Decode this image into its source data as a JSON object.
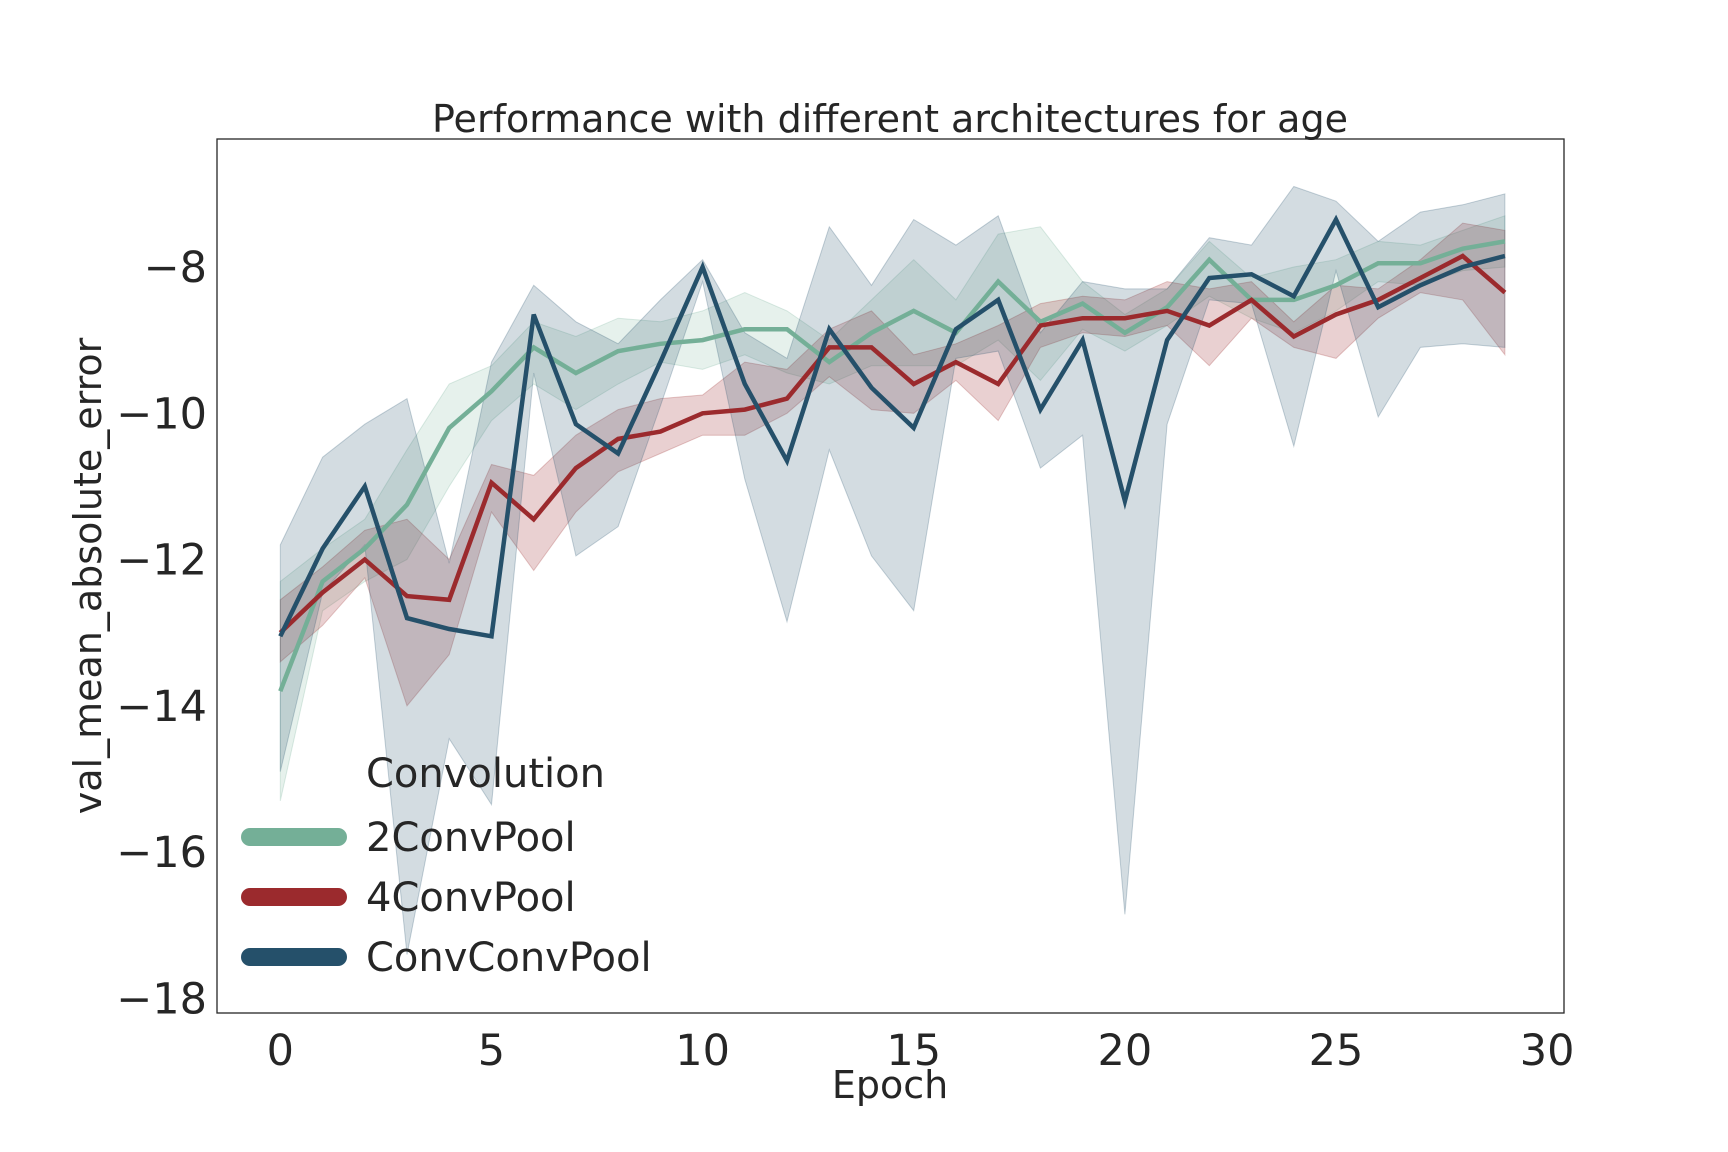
{
  "chart_data": {
    "type": "line",
    "title": "Performance with different architectures for age",
    "xlabel": "Epoch",
    "ylabel": "val_mean_absolute_error",
    "xlim": [
      -1.5,
      30.4
    ],
    "ylim": [
      -18.2,
      -6.25
    ],
    "xticks": [
      0,
      5,
      10,
      15,
      20,
      25,
      30
    ],
    "xtick_labels": [
      "0",
      "5",
      "10",
      "15",
      "20",
      "25",
      "30"
    ],
    "yticks": [
      -18,
      -16,
      -14,
      -12,
      -10,
      -8
    ],
    "ytick_labels": [
      "−18",
      "−16",
      "−14",
      "−12",
      "−10",
      "−8"
    ],
    "grid": false,
    "legend": {
      "title": "Convolution",
      "position": "lower-left"
    },
    "x": [
      0,
      1,
      2,
      3,
      4,
      5,
      6,
      7,
      8,
      9,
      10,
      11,
      12,
      13,
      14,
      15,
      16,
      17,
      18,
      19,
      20,
      21,
      22,
      23,
      24,
      25,
      26,
      27,
      28,
      29
    ],
    "series": [
      {
        "name": "2ConvPool",
        "color": "#74af97",
        "band_opacity": 0.18,
        "values": [
          -13.8,
          -12.3,
          -11.85,
          -11.25,
          -10.2,
          -9.7,
          -9.1,
          -9.45,
          -9.15,
          -9.05,
          -9.0,
          -8.85,
          -8.85,
          -9.3,
          -8.9,
          -8.6,
          -8.9,
          -8.2,
          -8.75,
          -8.5,
          -8.9,
          -8.55,
          -7.9,
          -8.45,
          -8.45,
          -8.25,
          -7.95,
          -7.95,
          -7.75,
          -7.65
        ],
        "lower": [
          -15.3,
          -12.7,
          -12.3,
          -12.0,
          -11.0,
          -10.1,
          -9.6,
          -9.95,
          -9.6,
          -9.3,
          -9.4,
          -9.2,
          -9.45,
          -9.6,
          -9.35,
          -9.35,
          -9.35,
          -9.0,
          -9.55,
          -8.85,
          -9.15,
          -8.8,
          -8.4,
          -8.7,
          -8.9,
          -8.6,
          -8.2,
          -8.25,
          -8.05,
          -8.0
        ],
        "upper": [
          -12.3,
          -11.85,
          -11.45,
          -10.5,
          -9.6,
          -9.35,
          -8.75,
          -8.95,
          -8.7,
          -8.75,
          -8.6,
          -8.35,
          -8.6,
          -9.0,
          -8.45,
          -7.9,
          -8.45,
          -7.55,
          -7.45,
          -8.2,
          -8.65,
          -8.3,
          -7.65,
          -8.15,
          -8.0,
          -7.9,
          -7.65,
          -7.7,
          -7.5,
          -7.3
        ]
      },
      {
        "name": "4ConvPool",
        "color": "#9b2a2d",
        "band_opacity": 0.22,
        "values": [
          -13.0,
          -12.45,
          -12.0,
          -12.5,
          -12.55,
          -10.95,
          -11.45,
          -10.75,
          -10.35,
          -10.25,
          -10.0,
          -9.95,
          -9.8,
          -9.1,
          -9.1,
          -9.6,
          -9.3,
          -9.6,
          -8.8,
          -8.7,
          -8.7,
          -8.6,
          -8.8,
          -8.45,
          -8.95,
          -8.65,
          -8.45,
          -8.15,
          -7.85,
          -8.35
        ],
        "lower": [
          -13.4,
          -12.9,
          -12.25,
          -14.0,
          -13.3,
          -11.35,
          -12.15,
          -11.35,
          -10.8,
          -10.55,
          -10.3,
          -10.3,
          -10.0,
          -9.5,
          -9.95,
          -10.0,
          -9.55,
          -10.1,
          -9.1,
          -8.9,
          -8.95,
          -8.8,
          -9.35,
          -8.7,
          -9.1,
          -9.25,
          -8.7,
          -8.35,
          -8.45,
          -9.2
        ],
        "upper": [
          -12.55,
          -12.1,
          -11.6,
          -11.45,
          -12.0,
          -10.7,
          -10.85,
          -10.3,
          -9.95,
          -9.8,
          -9.75,
          -9.3,
          -9.4,
          -8.85,
          -8.6,
          -9.2,
          -9.05,
          -8.8,
          -8.5,
          -8.4,
          -8.45,
          -8.2,
          -8.3,
          -8.2,
          -8.75,
          -8.25,
          -8.3,
          -7.9,
          -7.4,
          -7.5
        ]
      },
      {
        "name": "ConvConvPool",
        "color": "#25506a",
        "band_opacity": 0.2,
        "values": [
          -13.05,
          -11.85,
          -11.0,
          -12.8,
          -12.95,
          -13.05,
          -8.65,
          -10.15,
          -10.55,
          -9.3,
          -8.0,
          -9.6,
          -10.65,
          -8.85,
          -9.65,
          -10.2,
          -8.85,
          -8.45,
          -9.95,
          -9.0,
          -11.2,
          -9.0,
          -8.15,
          -8.1,
          -8.4,
          -7.35,
          -8.55,
          -8.25,
          -8.0,
          -7.85
        ],
        "lower": [
          -14.9,
          -12.45,
          -11.8,
          -17.4,
          -14.45,
          -15.35,
          -9.45,
          -11.95,
          -11.55,
          -9.9,
          -8.2,
          -10.9,
          -12.85,
          -10.5,
          -11.95,
          -12.7,
          -9.25,
          -9.15,
          -10.75,
          -10.3,
          -16.85,
          -10.15,
          -8.45,
          -8.5,
          -10.45,
          -8.05,
          -10.05,
          -9.1,
          -9.05,
          -9.1
        ],
        "upper": [
          -11.8,
          -10.6,
          -10.15,
          -9.8,
          -12.05,
          -9.3,
          -8.25,
          -8.75,
          -9.05,
          -8.45,
          -7.9,
          -8.9,
          -9.25,
          -7.45,
          -8.25,
          -7.35,
          -7.7,
          -7.3,
          -8.9,
          -8.2,
          -8.3,
          -8.3,
          -7.6,
          -7.7,
          -6.9,
          -7.1,
          -7.65,
          -7.25,
          -7.15,
          -7.0
        ]
      }
    ]
  }
}
